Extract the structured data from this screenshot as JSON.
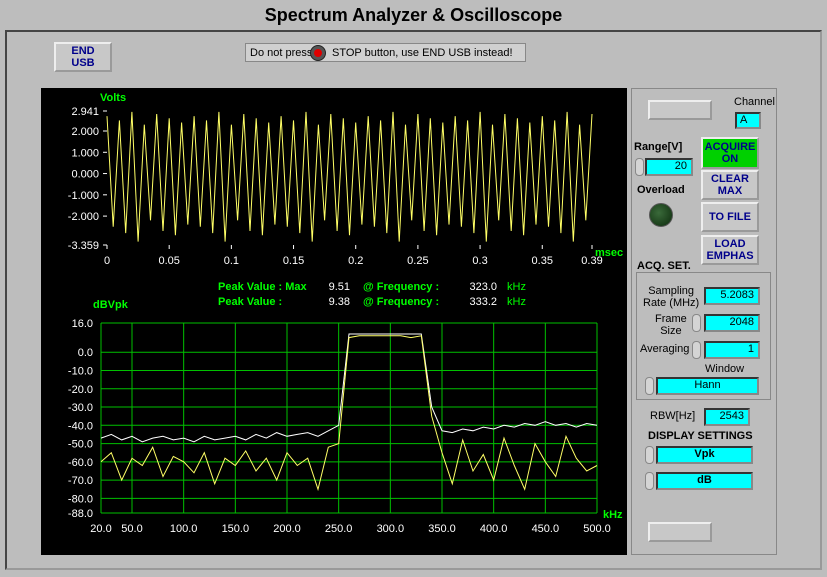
{
  "header": {
    "title": "Spectrum Analyzer & Oscilloscope"
  },
  "top": {
    "end_usb": "END\nUSB",
    "notice_left": "Do not press",
    "notice_right": "STOP button, use END USB instead!"
  },
  "scope": {
    "type": "line",
    "y_label": "Volts",
    "x_label": "msec",
    "line_color": "#ffff66",
    "grid_color": "#00c000",
    "xlim": [
      0,
      0.39
    ],
    "ylim": [
      -3.359,
      2.941
    ],
    "xticks": [
      0,
      0.05,
      0.1,
      0.15,
      0.2,
      0.25,
      0.3,
      0.35,
      0.39
    ],
    "yticks": [
      2.941,
      {
        "value": 2,
        "label": "2.000"
      },
      {
        "value": 1,
        "label": "1.000"
      },
      {
        "value": 0,
        "label": "0.000"
      },
      {
        "value": -1,
        "label": "-1.000"
      },
      {
        "value": -2,
        "label": "-2.000"
      },
      -3.359
    ],
    "x": [
      0,
      0.005,
      0.01,
      0.015,
      0.02,
      0.025,
      0.03,
      0.035,
      0.04,
      0.045,
      0.05,
      0.055,
      0.06,
      0.065,
      0.07,
      0.075,
      0.08,
      0.085,
      0.09,
      0.095,
      0.1,
      0.105,
      0.11,
      0.115,
      0.12,
      0.125,
      0.13,
      0.135,
      0.14,
      0.145,
      0.15,
      0.155,
      0.16,
      0.165,
      0.17,
      0.175,
      0.18,
      0.185,
      0.19,
      0.195,
      0.2,
      0.205,
      0.21,
      0.215,
      0.22,
      0.225,
      0.23,
      0.235,
      0.24,
      0.245,
      0.25,
      0.255,
      0.26,
      0.265,
      0.27,
      0.275,
      0.28,
      0.285,
      0.29,
      0.295,
      0.3,
      0.305,
      0.31,
      0.315,
      0.32,
      0.325,
      0.33,
      0.335,
      0.34,
      0.345,
      0.35,
      0.355,
      0.36,
      0.365,
      0.37,
      0.375,
      0.38,
      0.385,
      0.39
    ],
    "values": [
      2.7,
      -2.5,
      2.5,
      -2.8,
      2.9,
      -3.2,
      2.3,
      -2.2,
      2.8,
      -2.7,
      2.6,
      -2.9,
      2.4,
      -2.4,
      2.7,
      -2.5,
      2.5,
      -2.8,
      2.9,
      -3.2,
      2.3,
      -2.2,
      2.8,
      -2.7,
      2.6,
      -2.9,
      2.4,
      -2.4,
      2.7,
      -2.5,
      2.5,
      -2.8,
      2.9,
      -3.2,
      2.3,
      -2.2,
      2.8,
      -2.7,
      2.6,
      -2.9,
      2.4,
      -2.4,
      2.7,
      -2.5,
      2.5,
      -2.8,
      2.9,
      -3.2,
      2.3,
      -2.2,
      2.8,
      -2.7,
      2.6,
      -2.9,
      2.4,
      -2.4,
      2.7,
      -2.5,
      2.5,
      -2.8,
      2.9,
      -3.2,
      2.3,
      -2.2,
      2.8,
      -2.7,
      2.6,
      -2.9,
      2.4,
      -2.4,
      2.7,
      -2.5,
      2.5,
      -2.8,
      2.9,
      -3.2,
      2.3,
      -2.2,
      2.8
    ]
  },
  "peaks": [
    {
      "label": "Peak Value : Max",
      "value": "9.51",
      "freq_label": "@ Frequency :",
      "freq": "323.0",
      "unit": "kHz"
    },
    {
      "label": "Peak Value :",
      "value": "9.38",
      "freq_label": "@ Frequency :",
      "freq": "333.2",
      "unit": "kHz"
    }
  ],
  "spectrum": {
    "type": "line",
    "y_label": "dBVpk",
    "x_label": "kHz",
    "grid_color": "#00c000",
    "xlim": [
      20,
      500
    ],
    "ylim": [
      -88,
      16
    ],
    "xticks": [
      {
        "value": 20,
        "label": "20.0"
      },
      {
        "value": 50,
        "label": "50.0"
      },
      {
        "value": 100,
        "label": "100.0"
      },
      {
        "value": 150,
        "label": "150.0"
      },
      {
        "value": 200,
        "label": "200.0"
      },
      {
        "value": 250,
        "label": "250.0"
      },
      {
        "value": 300,
        "label": "300.0"
      },
      {
        "value": 350,
        "label": "350.0"
      },
      {
        "value": 400,
        "label": "400.0"
      },
      {
        "value": 450,
        "label": "450.0"
      },
      {
        "value": 500,
        "label": "500.0"
      }
    ],
    "yticks": [
      {
        "value": 16,
        "label": "16.0"
      },
      {
        "value": 0,
        "label": "0.0"
      },
      {
        "value": -10,
        "label": "-10.0"
      },
      {
        "value": -20,
        "label": "-20.0"
      },
      {
        "value": -30,
        "label": "-30.0"
      },
      {
        "value": -40,
        "label": "-40.0"
      },
      {
        "value": -50,
        "label": "-50.0"
      },
      {
        "value": -60,
        "label": "-60.0"
      },
      {
        "value": -70,
        "label": "-70.0"
      },
      {
        "value": -80,
        "label": "-80.0"
      },
      {
        "value": -88,
        "label": "-88.0"
      }
    ],
    "x": [
      20,
      30,
      40,
      50,
      60,
      70,
      80,
      90,
      100,
      110,
      120,
      130,
      140,
      150,
      160,
      170,
      180,
      190,
      200,
      210,
      220,
      230,
      240,
      250,
      260,
      270,
      280,
      290,
      300,
      310,
      320,
      330,
      340,
      350,
      360,
      370,
      380,
      390,
      400,
      410,
      420,
      430,
      440,
      450,
      460,
      470,
      480,
      490,
      500
    ],
    "series": [
      {
        "color": "#ffffff",
        "values": [
          -47,
          -45,
          -48,
          -46,
          -49,
          -47,
          -46,
          -48,
          -47,
          -49,
          -46,
          -48,
          -47,
          -46,
          -48,
          -45,
          -47,
          -44,
          -46,
          -45,
          -44,
          -46,
          -43,
          -40,
          10,
          10,
          10,
          10,
          10,
          10,
          10,
          10,
          -30,
          -43,
          -44,
          -42,
          -43,
          -41,
          -42,
          -40,
          -41,
          -39,
          -40,
          -38,
          -40,
          -39,
          -41,
          -39,
          -40
        ]
      },
      {
        "color": "#ffff66",
        "values": [
          -60,
          -55,
          -70,
          -58,
          -62,
          -52,
          -68,
          -57,
          -60,
          -66,
          -55,
          -72,
          -58,
          -62,
          -54,
          -65,
          -58,
          -70,
          -55,
          -62,
          -58,
          -75,
          -52,
          -50,
          8,
          9,
          9,
          9,
          9,
          9,
          8,
          9,
          -35,
          -55,
          -72,
          -48,
          -65,
          -56,
          -70,
          -47,
          -62,
          -75,
          -50,
          -60,
          -68,
          -46,
          -58,
          -65,
          -62
        ]
      }
    ]
  },
  "side": {
    "channel_label": "Channel",
    "channel": "A",
    "range_label": "Range[V]",
    "range": "20",
    "overload": "Overload",
    "buttons": [
      "ACQUIRE\nON",
      "CLEAR\nMAX",
      "TO FILE",
      "LOAD\nEMPHAS"
    ],
    "acq_title": "ACQ. SET.",
    "sampling_label": "Sampling\nRate (MHz)",
    "sampling": "5.2083",
    "frame_label": "Frame\nSize",
    "frame": "2048",
    "averaging_label": "Averaging",
    "averaging": "1",
    "window_label": "Window",
    "window": "Hann",
    "rbw_label": "RBW[Hz]",
    "rbw": "2543",
    "display_title": "DISPLAY SETTINGS",
    "display_1": "Vpk",
    "display_2": "dB"
  }
}
